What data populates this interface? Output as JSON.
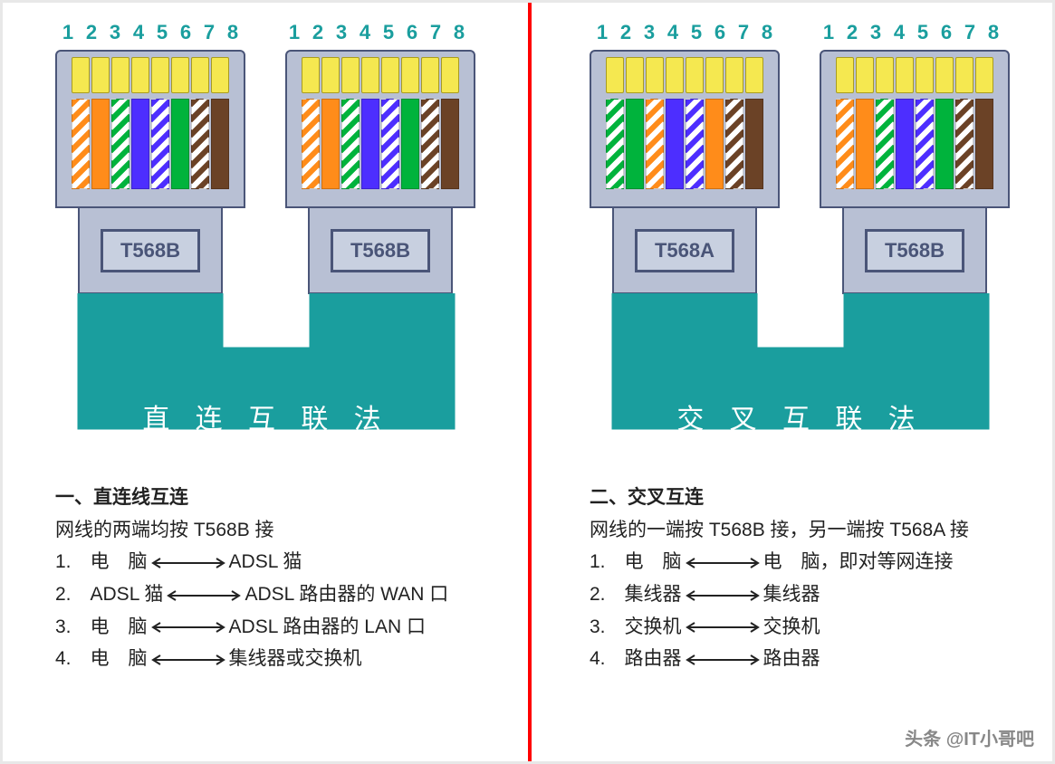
{
  "colors": {
    "teal": "#1a9e9e",
    "connector_body": "#b8c0d4",
    "connector_border": "#4a5578",
    "pin_gold": "#f5e850",
    "cable_fill": "#1a9e9e",
    "red_divider": "#ff0000",
    "text": "#222222"
  },
  "pin_numbers": [
    "1",
    "2",
    "3",
    "4",
    "5",
    "6",
    "7",
    "8"
  ],
  "t568b": {
    "label": "T568B",
    "wires": [
      {
        "type": "stripe",
        "color": "#ff8c1a"
      },
      {
        "type": "solid",
        "color": "#ff8c1a"
      },
      {
        "type": "stripe",
        "color": "#00b33c"
      },
      {
        "type": "solid",
        "color": "#4d2eff"
      },
      {
        "type": "stripe",
        "color": "#4d2eff"
      },
      {
        "type": "solid",
        "color": "#00b33c"
      },
      {
        "type": "stripe",
        "color": "#6b4226"
      },
      {
        "type": "solid",
        "color": "#6b4226"
      }
    ]
  },
  "t568a": {
    "label": "T568A",
    "wires": [
      {
        "type": "stripe",
        "color": "#00b33c"
      },
      {
        "type": "solid",
        "color": "#00b33c"
      },
      {
        "type": "stripe",
        "color": "#ff8c1a"
      },
      {
        "type": "solid",
        "color": "#4d2eff"
      },
      {
        "type": "stripe",
        "color": "#4d2eff"
      },
      {
        "type": "solid",
        "color": "#ff8c1a"
      },
      {
        "type": "stripe",
        "color": "#6b4226"
      },
      {
        "type": "solid",
        "color": "#6b4226"
      }
    ]
  },
  "left": {
    "method_title": "直 连 互 联 法",
    "connector1": "t568b",
    "connector2": "t568b",
    "desc_title": "一、直连线互连",
    "desc_sub": "网线的两端均按 T568B 接",
    "items": [
      {
        "n": "1.",
        "a": "电　脑",
        "b": "ADSL 猫"
      },
      {
        "n": "2.",
        "a": "ADSL 猫",
        "b": "ADSL 路由器的 WAN 口"
      },
      {
        "n": "3.",
        "a": "电　脑",
        "b": "ADSL 路由器的 LAN 口"
      },
      {
        "n": "4.",
        "a": "电　脑",
        "b": "集线器或交换机"
      }
    ]
  },
  "right": {
    "method_title": "交 叉 互 联 法",
    "connector1": "t568a",
    "connector2": "t568b",
    "desc_title": "二、交叉互连",
    "desc_sub": "网线的一端按 T568B 接，另一端按 T568A 接",
    "items": [
      {
        "n": "1.",
        "a": "电　脑",
        "b": "电　脑，即对等网连接"
      },
      {
        "n": "2.",
        "a": "集线器",
        "b": "集线器"
      },
      {
        "n": "3.",
        "a": "交换机",
        "b": "交换机"
      },
      {
        "n": "4.",
        "a": "路由器",
        "b": "路由器"
      }
    ]
  },
  "watermark": "头条 @IT小哥吧",
  "watermark2": ""
}
